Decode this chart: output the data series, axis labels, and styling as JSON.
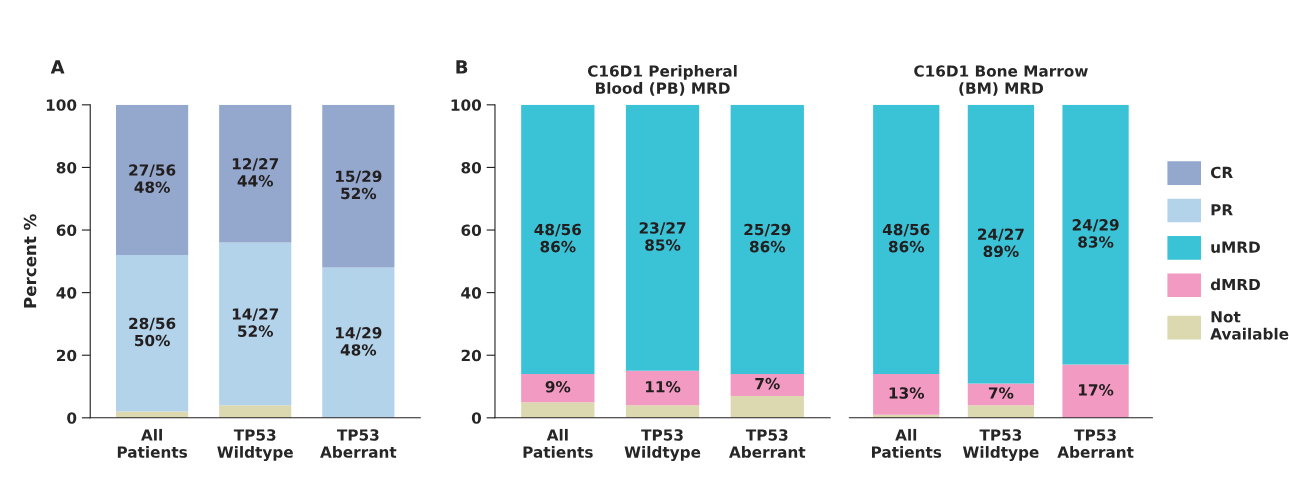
{
  "chart_data": [
    {
      "type": "bar",
      "title": "A",
      "ylabel": "Percent %",
      "categories": [
        "All Patients",
        "TP53 Wildtype",
        "TP53 Aberrant"
      ],
      "stacked": true,
      "ylim": [
        0,
        100
      ],
      "yticks": [
        0,
        20,
        40,
        60,
        80,
        100
      ],
      "grid": false,
      "legend": "right",
      "series": [
        {
          "name": "Not Available",
          "color": "#dcd9b0",
          "values": [
            2,
            4,
            0
          ]
        },
        {
          "name": "PR",
          "color": "#b3d3ea",
          "values": [
            50,
            52,
            48
          ],
          "value_labels": [
            "28/56\n50%",
            "14/27\n52%",
            "14/29\n48%"
          ]
        },
        {
          "name": "CR",
          "color": "#93a8cc",
          "values": [
            48,
            44,
            52
          ],
          "value_labels": [
            "27/56\n48%",
            "12/27\n44%",
            "15/29\n52%"
          ]
        }
      ]
    },
    {
      "type": "bar",
      "title": "C16D1 Peripheral\nBlood (PB) MRD",
      "annotations": [
        "B"
      ],
      "categories": [
        "All Patients",
        "TP53 Wildtype",
        "TP53 Aberrant"
      ],
      "stacked": true,
      "ylim": [
        0,
        100
      ],
      "yticks": [
        0,
        20,
        40,
        60,
        80,
        100
      ],
      "grid": false,
      "legend": "right",
      "series": [
        {
          "name": "Not Available",
          "color": "#dcd9b0",
          "values": [
            5,
            4,
            7
          ]
        },
        {
          "name": "dMRD",
          "color": "#f29ac2",
          "values": [
            9,
            11,
            7
          ],
          "value_labels": [
            "9%",
            "11%",
            "7%"
          ]
        },
        {
          "name": "uMRD",
          "color": "#3ac3d6",
          "values": [
            86,
            85,
            86
          ],
          "value_labels": [
            "48/56\n86%",
            "23/27\n85%",
            "25/29\n86%"
          ]
        }
      ]
    },
    {
      "type": "bar",
      "title": "C16D1 Bone Marrow\n(BM) MRD",
      "categories": [
        "All Patients",
        "TP53 Wildtype",
        "TP53 Aberrant"
      ],
      "stacked": true,
      "ylim": [
        0,
        100
      ],
      "tick_labels": "x",
      "grid": false,
      "legend": "right",
      "series": [
        {
          "name": "Not Available",
          "color": "#dcd9b0",
          "values": [
            1,
            4,
            0
          ]
        },
        {
          "name": "dMRD",
          "color": "#f29ac2",
          "values": [
            13,
            7,
            17
          ],
          "value_labels": [
            "13%",
            "7%",
            "17%"
          ]
        },
        {
          "name": "uMRD",
          "color": "#3ac3d6",
          "values": [
            86,
            89,
            83
          ],
          "value_labels": [
            "48/56\n86%",
            "24/27\n89%",
            "24/29\n83%"
          ]
        }
      ]
    }
  ]
}
